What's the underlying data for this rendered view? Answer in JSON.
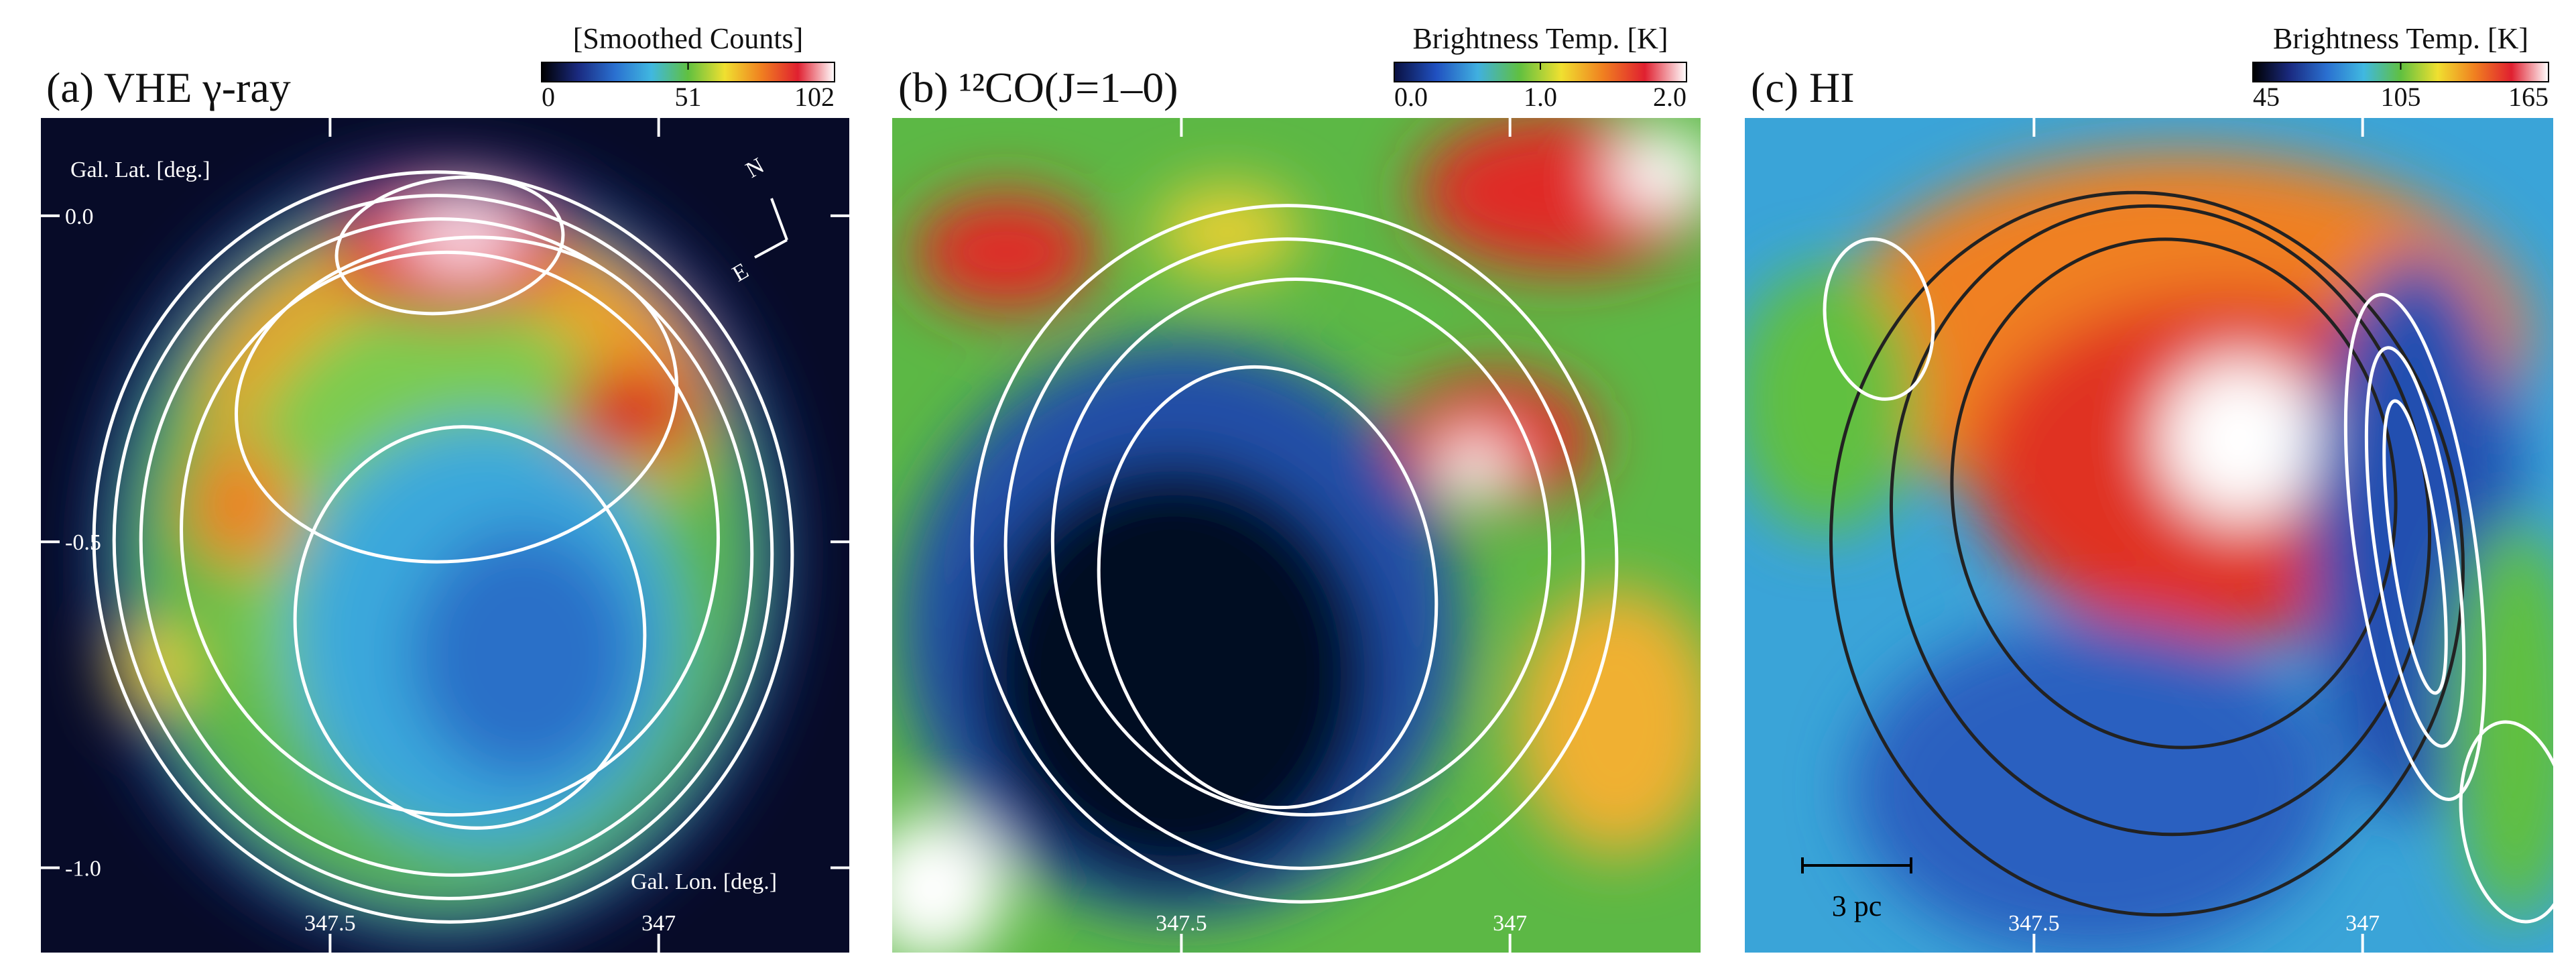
{
  "chart_data": [
    {
      "type": "image",
      "title": "(a) VHE γ-ray",
      "xlabel": "Gal. Lon. [deg.]",
      "ylabel": "Gal. Lat. [deg.]",
      "xlim": [
        347.94,
        346.71
      ],
      "ylim": [
        -1.13,
        0.15
      ],
      "xticks": [
        347.5,
        347.0
      ],
      "yticks": [
        {
          "value": 0,
          "label": "0.0"
        },
        {
          "value": -0.5,
          "label": "-0.5"
        },
        {
          "value": -1,
          "label": "-1.0"
        }
      ],
      "colorbar": {
        "label": "[Smoothed Counts]",
        "lim": [
          0,
          102
        ],
        "ticks": [
          0,
          51,
          102
        ],
        "colors": [
          "#000000",
          "#1a2a80",
          "#2a70d0",
          "#40b8e0",
          "#60c040",
          "#f0e030",
          "#f08020",
          "#e02030",
          "#ffffff"
        ]
      },
      "annotations": [
        "N",
        "E"
      ]
    },
    {
      "type": "image",
      "title": "(b) ¹²CO(J=1–0)",
      "xlim": [
        347.94,
        346.71
      ],
      "ylim": [
        -1.13,
        0.15
      ],
      "xticks": [
        347.5,
        347.0
      ],
      "colorbar": {
        "label": "Brightness Temp. [K]",
        "lim": [
          0,
          2
        ],
        "ticks": [
          {
            "value": 0,
            "label": "0.0"
          },
          {
            "value": 1,
            "label": "1.0"
          },
          {
            "value": 2,
            "label": "2.0"
          }
        ],
        "colors": [
          "#0a1040",
          "#2050c0",
          "#40b0e0",
          "#60c040",
          "#f0e030",
          "#f08020",
          "#e02030",
          "#ffffff"
        ]
      }
    },
    {
      "type": "image",
      "title": "(c) HI",
      "xlim": [
        347.94,
        346.71
      ],
      "ylim": [
        -1.13,
        0.15
      ],
      "xticks": [
        347.5,
        347.0
      ],
      "colorbar": {
        "label": "Brightness Temp. [K]",
        "lim": [
          45,
          165
        ],
        "ticks": [
          45,
          105,
          165
        ],
        "colors": [
          "#000000",
          "#1a2a80",
          "#2a70d0",
          "#40b8e0",
          "#60c040",
          "#f0e030",
          "#f08020",
          "#e02030",
          "#ffffff"
        ]
      },
      "annotations": [
        "3 pc"
      ]
    }
  ]
}
